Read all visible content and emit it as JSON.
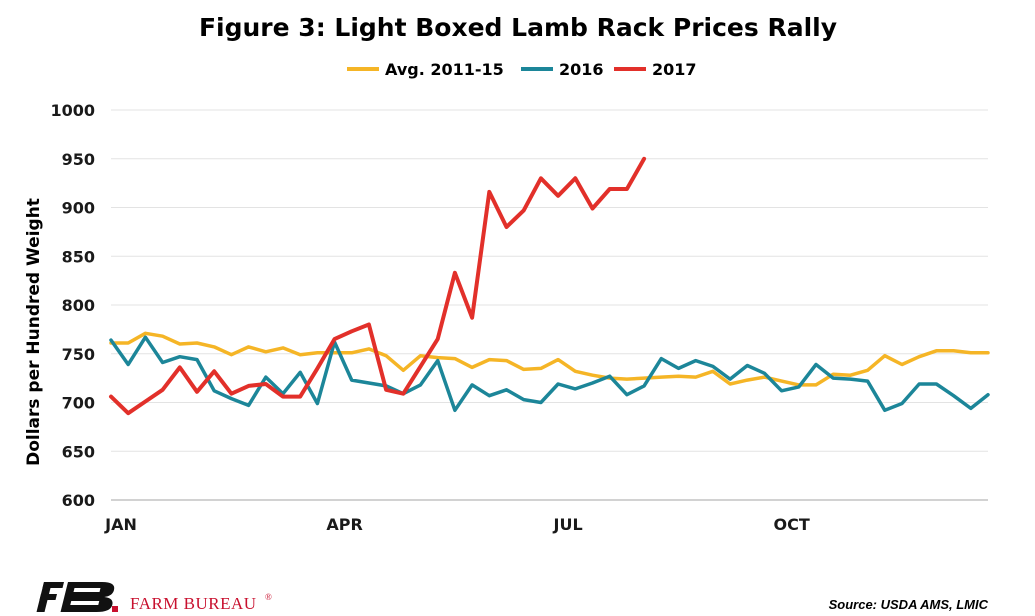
{
  "title": "Figure 3: Light Boxed Lamb Rack Prices Rally",
  "source": "Source: USDA AMS, LMIC",
  "brand": {
    "name": "FARM BUREAU",
    "mark": "®",
    "logo_text": "FB"
  },
  "colors": {
    "avg": "#F5B526",
    "y2016": "#1C8699",
    "y2017": "#E2302A",
    "brand": "#C8102E"
  },
  "chart_data": {
    "type": "line",
    "title": "Figure 3: Light Boxed Lamb Rack Prices Rally",
    "ylabel": "Dollars per Hundred Weight",
    "xlabel": "",
    "ylim": [
      600,
      1000
    ],
    "yticks": [
      600,
      650,
      700,
      750,
      800,
      850,
      900,
      950,
      1000
    ],
    "xlim": [
      1,
      52
    ],
    "xtick_labels": [
      {
        "label": "JAN",
        "week": 1
      },
      {
        "label": "APR",
        "week": 14
      },
      {
        "label": "JUL",
        "week": 27
      },
      {
        "label": "OCT",
        "week": 40
      }
    ],
    "grid": "horizontal",
    "legend_position": "top",
    "series": [
      {
        "name": "Avg. 2011-15",
        "color": "#F5B526",
        "x": [
          1,
          2,
          3,
          4,
          5,
          6,
          7,
          8,
          9,
          10,
          11,
          12,
          13,
          14,
          15,
          16,
          17,
          18,
          19,
          20,
          21,
          22,
          23,
          24,
          25,
          26,
          27,
          28,
          29,
          30,
          31,
          32,
          33,
          34,
          35,
          36,
          37,
          38,
          39,
          40,
          41,
          42,
          43,
          44,
          45,
          46,
          47,
          48,
          49,
          50,
          51,
          52
        ],
        "values": [
          761,
          761,
          771,
          768,
          760,
          761,
          757,
          749,
          757,
          752,
          756,
          749,
          751,
          751,
          751,
          755,
          748,
          733,
          748,
          746,
          745,
          736,
          744,
          743,
          734,
          735,
          744,
          732,
          728,
          725,
          724,
          725,
          726,
          727,
          726,
          732,
          719,
          723,
          726,
          722,
          718,
          718,
          729,
          728,
          733,
          748,
          739,
          747,
          753,
          753,
          751,
          751
        ]
      },
      {
        "name": "2016",
        "color": "#1C8699",
        "x": [
          1,
          2,
          3,
          4,
          5,
          6,
          7,
          8,
          9,
          10,
          11,
          12,
          13,
          14,
          15,
          16,
          17,
          18,
          19,
          20,
          21,
          22,
          23,
          24,
          25,
          26,
          27,
          28,
          29,
          30,
          31,
          32,
          33,
          34,
          35,
          36,
          37,
          38,
          39,
          40,
          41,
          42,
          43,
          44,
          45,
          46,
          47,
          48,
          49,
          50,
          51,
          52
        ],
        "values": [
          764,
          739,
          767,
          741,
          747,
          744,
          712,
          704,
          697,
          726,
          709,
          731,
          699,
          762,
          723,
          720,
          717,
          709,
          718,
          743,
          692,
          718,
          707,
          713,
          703,
          700,
          719,
          714,
          720,
          727,
          708,
          717,
          745,
          735,
          743,
          737,
          724,
          738,
          730,
          712,
          716,
          739,
          725,
          724,
          722,
          692,
          699,
          719,
          719,
          707,
          694,
          708
        ]
      },
      {
        "name": "2017",
        "color": "#E2302A",
        "x": [
          1,
          2,
          3,
          4,
          5,
          6,
          7,
          8,
          9,
          10,
          11,
          12,
          13,
          14,
          15,
          16,
          17,
          18,
          19,
          20,
          21,
          22,
          23,
          24,
          25,
          26,
          27,
          28,
          29,
          30,
          31,
          32
        ],
        "values": [
          706,
          689,
          701,
          713,
          736,
          711,
          732,
          709,
          717,
          719,
          706,
          706,
          735,
          765,
          773,
          780,
          713,
          709,
          737,
          765,
          833,
          787,
          916,
          880,
          897,
          930,
          912,
          930,
          899,
          919,
          919,
          950
        ]
      }
    ]
  }
}
